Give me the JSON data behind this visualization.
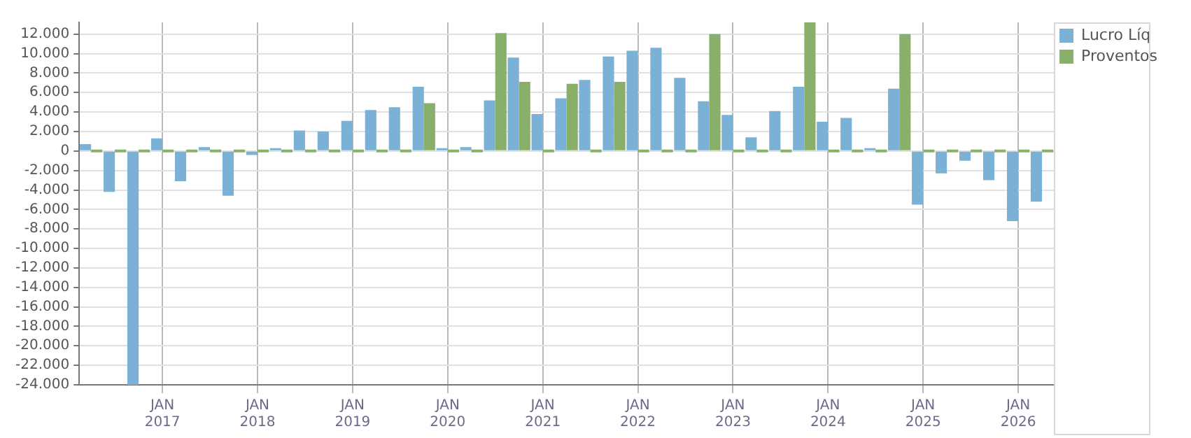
{
  "chart_data": {
    "type": "bar",
    "categories": [
      null,
      null,
      null,
      "JAN 2017",
      null,
      null,
      null,
      "JAN 2018",
      null,
      null,
      null,
      "JAN 2019",
      null,
      null,
      null,
      "JAN 2020",
      null,
      null,
      null,
      "JAN 2021",
      null,
      null,
      null,
      "JAN 2022",
      null,
      null,
      null,
      "JAN 2023",
      null,
      null,
      null,
      "JAN 2024",
      null,
      null,
      null,
      "JAN 2025",
      null,
      null,
      null,
      "JAN 2026",
      null
    ],
    "series": [
      {
        "name": "Lucro Líq",
        "color": "#7ab1d4",
        "values": [
          700,
          -4200,
          -24000,
          1300,
          -3100,
          400,
          -4600,
          -400,
          150,
          2100,
          2000,
          3100,
          4200,
          4500,
          6600,
          150,
          400,
          5200,
          9600,
          3800,
          5400,
          7300,
          9700,
          10300,
          10600,
          7500,
          5100,
          3700,
          1400,
          4100,
          6600,
          3000,
          3400,
          300,
          6400,
          -5500,
          -2300,
          -1000,
          -3000,
          -7200,
          -5200
        ]
      },
      {
        "name": "Proventos",
        "color": "#88b06a",
        "values": [
          0,
          0,
          0,
          0,
          0,
          0,
          0,
          0,
          0,
          0,
          0,
          0,
          0,
          0,
          4900,
          0,
          0,
          12100,
          7100,
          0,
          6900,
          0,
          7100,
          0,
          0,
          0,
          12000,
          0,
          0,
          0,
          13200,
          0,
          0,
          0,
          12000,
          0,
          0,
          0,
          0,
          0,
          0
        ]
      }
    ],
    "ylim": [
      -24000,
      13200
    ],
    "yticks": [
      {
        "value": -24000,
        "label": "-24.000"
      },
      {
        "value": -22000,
        "label": "-22.000"
      },
      {
        "value": -20000,
        "label": "-20.000"
      },
      {
        "value": -18000,
        "label": "-18.000"
      },
      {
        "value": -16000,
        "label": "-16.000"
      },
      {
        "value": -14000,
        "label": "-14.000"
      },
      {
        "value": -12000,
        "label": "-12.000"
      },
      {
        "value": -10000,
        "label": "-10.000"
      },
      {
        "value": -8000,
        "label": "-8.000"
      },
      {
        "value": -6000,
        "label": "-6.000"
      },
      {
        "value": -4000,
        "label": "-4.000"
      },
      {
        "value": -2000,
        "label": "-2.000"
      },
      0,
      {
        "value": 2000,
        "label": "2.000"
      },
      {
        "value": 4000,
        "label": "4.000"
      },
      {
        "value": 6000,
        "label": "6.000"
      },
      {
        "value": 8000,
        "label": "8.000"
      },
      {
        "value": 10000,
        "label": "10.000"
      },
      {
        "value": 12000,
        "label": "12.000"
      }
    ],
    "grid": true,
    "legend": "top right"
  }
}
